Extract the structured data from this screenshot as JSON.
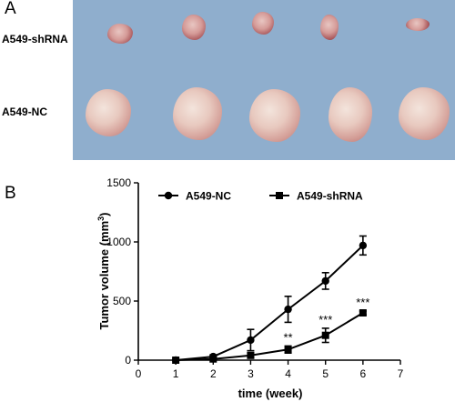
{
  "panel_a": {
    "letter": "A",
    "row_labels": [
      "A549-shRNA",
      "A549-NC"
    ]
  },
  "panel_b": {
    "letter": "B"
  },
  "colors": {
    "photo_background": "#8faecd",
    "series": "#000000"
  },
  "chart_data": {
    "type": "line",
    "title": "",
    "xlabel": "time (week)",
    "ylabel": "Tumor volume (mm3)",
    "xlim": [
      0,
      7
    ],
    "ylim": [
      0,
      1500
    ],
    "xticks": [
      0,
      1,
      2,
      3,
      4,
      5,
      6,
      7
    ],
    "yticks": [
      0,
      500,
      1000,
      1500
    ],
    "legend_position": "top",
    "grid": false,
    "series": [
      {
        "name": "A549-NC",
        "marker": "circle",
        "x": [
          1,
          2,
          3,
          4,
          5,
          6
        ],
        "y": [
          0,
          30,
          170,
          430,
          670,
          970
        ],
        "err": [
          5,
          15,
          90,
          110,
          70,
          80
        ],
        "annotations": []
      },
      {
        "name": "A549-shRNA",
        "marker": "square",
        "x": [
          1,
          2,
          3,
          4,
          5,
          6
        ],
        "y": [
          0,
          10,
          40,
          90,
          210,
          400
        ],
        "err": [
          0,
          8,
          20,
          30,
          60,
          15
        ],
        "annotations": [
          "",
          "",
          "",
          "**",
          "***",
          "***"
        ]
      }
    ]
  }
}
